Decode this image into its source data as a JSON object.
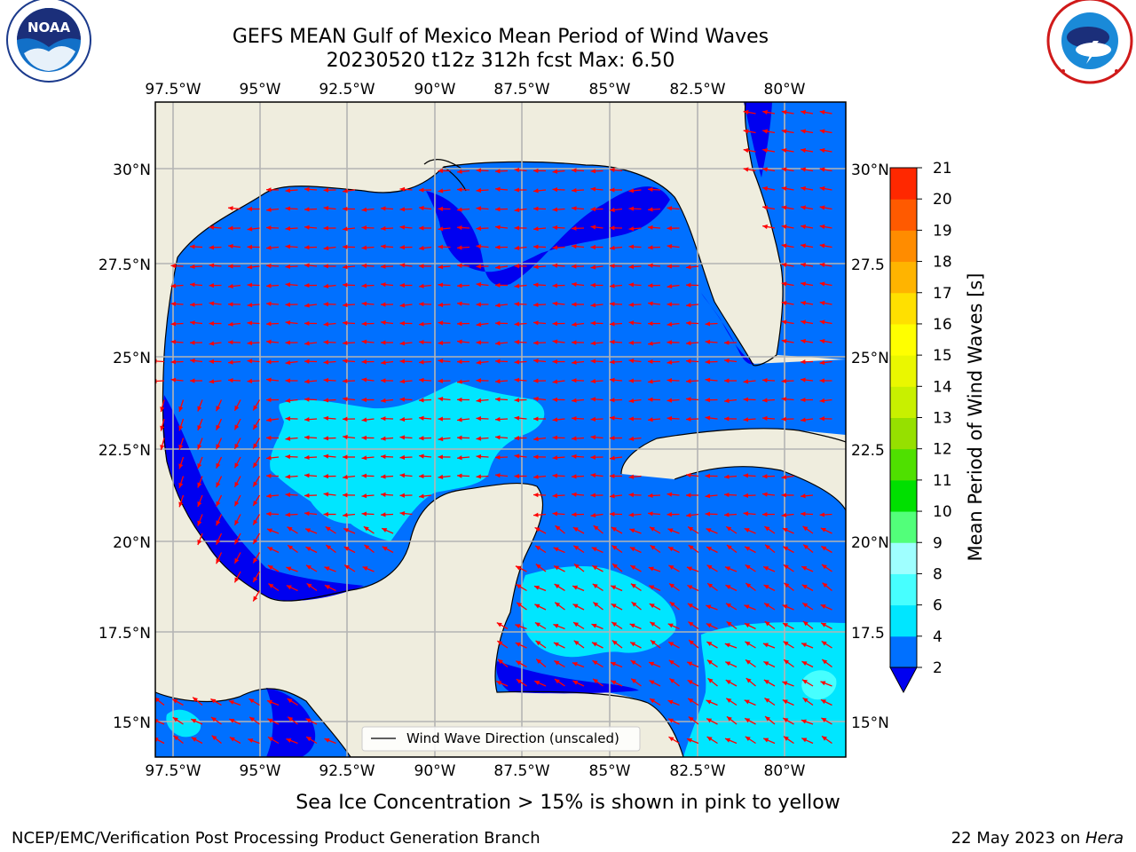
{
  "title": {
    "line1": "GEFS MEAN Gulf of Mexico Mean Period of Wind Waves",
    "line2": "20230520 t12z 312h fcst   Max: 6.50"
  },
  "logos": {
    "left": {
      "name": "NOAA",
      "ring_text": "NATIONAL OCEANIC AND ATMOSPHERIC ADMINISTRATION · U.S. DEPARTMENT OF COMMERCE ·"
    },
    "right": {
      "name": "NATIONAL WEATHER SERVICE"
    }
  },
  "map": {
    "lon_ticks": [
      "97.5°W",
      "95°W",
      "92.5°W",
      "90°W",
      "87.5°W",
      "85°W",
      "82.5°W",
      "80°W"
    ],
    "lat_ticks_left": [
      "30°N",
      "27.5°N",
      "25°N",
      "22.5°N",
      "20°N",
      "17.5°N",
      "15°N"
    ],
    "lat_ticks_right": [
      "30°N",
      "27.5",
      "25°N",
      "22.5",
      "20°N",
      "17.5",
      "15°N"
    ],
    "lon_values": [
      -97.5,
      -95,
      -92.5,
      -90,
      -87.5,
      -85,
      -82.5,
      -80
    ],
    "lat_values": [
      30,
      27.5,
      25,
      22.5,
      20,
      17.5,
      15
    ],
    "lon_range": [
      -98,
      -78.2
    ],
    "lat_range": [
      14,
      31.6
    ],
    "legend_label": "Wind Wave Direction (unscaled)",
    "arrow_color": "#ff0000",
    "land_color": "#efedde",
    "grid": true
  },
  "colorbar": {
    "label": "Mean Period of Wind Waves [s]",
    "tick_labels": [
      "2",
      "4",
      "6",
      "8",
      "9",
      "10",
      "11",
      "12",
      "13",
      "14",
      "15",
      "16",
      "17",
      "18",
      "19",
      "20",
      "21"
    ],
    "colors": [
      "#0070ff",
      "#00e6ff",
      "#47ffff",
      "#9fffff",
      "#52ff7a",
      "#00e000",
      "#4fe000",
      "#96e000",
      "#c8f000",
      "#eaf700",
      "#ffff00",
      "#ffe000",
      "#ffb400",
      "#ff8c00",
      "#ff5a00",
      "#ff2800"
    ],
    "under_color": "#0000f0"
  },
  "footer": {
    "note": "Sea Ice Concentration > 15% is shown in pink to yellow",
    "left": "NCEP/EMC/Verification Post Processing Product Generation Branch",
    "right_date": "22 May 2023 on ",
    "right_machine": "Hera"
  }
}
